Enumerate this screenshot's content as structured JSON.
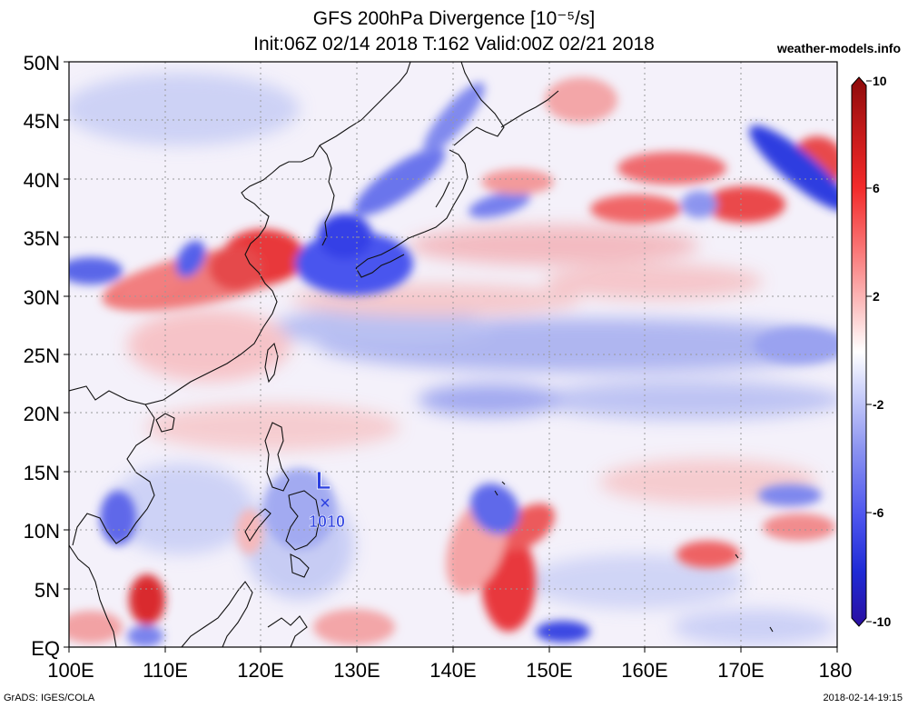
{
  "header": {
    "title": "GFS 200hPa Divergence [10⁻⁵/s]",
    "subtitle": "Init:06Z 02/14 2018 T:162 Valid:00Z 02/21 2018",
    "brand": "weather-models.info"
  },
  "axes": {
    "lat_labels": [
      "50N",
      "45N",
      "40N",
      "35N",
      "30N",
      "25N",
      "20N",
      "15N",
      "10N",
      "5N",
      "EQ"
    ],
    "lon_labels": [
      "100E",
      "110E",
      "120E",
      "130E",
      "140E",
      "150E",
      "160E",
      "170E",
      "180"
    ]
  },
  "colorbar": {
    "labels": [
      "10",
      "6",
      "2",
      "-2",
      "-6",
      "-10"
    ],
    "colors": [
      "#8c0a0a",
      "#c41a1a",
      "#f22a2a",
      "#fa7a7a",
      "#fcc3c3",
      "#ffffff",
      "#c8cdfa",
      "#8a92f0",
      "#4d55ee",
      "#1f2bd6",
      "#2a0fa0"
    ]
  },
  "marker": {
    "letter": "L",
    "pressure": "1010",
    "color": "#2b3fe0"
  },
  "footer": {
    "credit": "GrADS: IGES/COLA",
    "timestamp": "2018-02-14-19:15"
  }
}
